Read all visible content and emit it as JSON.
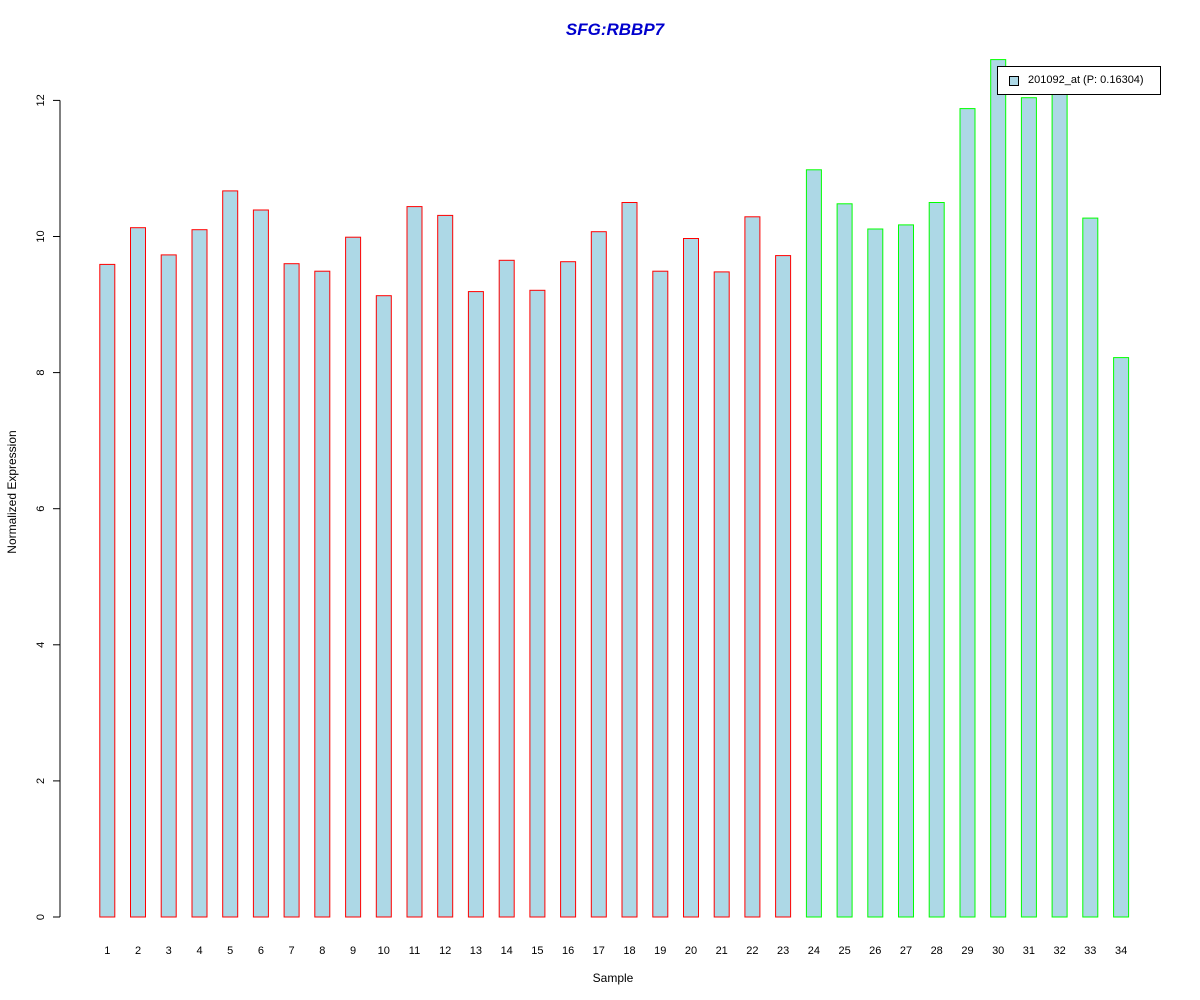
{
  "chart_data": {
    "type": "bar",
    "title": "SFG:RBBP7",
    "xlabel": "Sample",
    "ylabel": "Normalized Expression",
    "ylim": [
      0,
      12.6
    ],
    "yticks": [
      0,
      2,
      4,
      6,
      8,
      10,
      12
    ],
    "grid": false,
    "legend_position": "top-right",
    "categories": [
      "1",
      "2",
      "3",
      "4",
      "5",
      "6",
      "7",
      "8",
      "9",
      "10",
      "11",
      "12",
      "13",
      "14",
      "15",
      "16",
      "17",
      "18",
      "19",
      "20",
      "21",
      "22",
      "23",
      "24",
      "25",
      "26",
      "27",
      "28",
      "29",
      "30",
      "31",
      "32",
      "33",
      "34"
    ],
    "series": [
      {
        "name": "201092_at (P: 0.16304)",
        "values": [
          9.59,
          10.13,
          9.73,
          10.1,
          10.67,
          10.39,
          9.6,
          9.49,
          9.99,
          9.13,
          10.44,
          10.31,
          9.19,
          9.65,
          9.21,
          9.63,
          10.07,
          10.5,
          9.49,
          9.97,
          9.48,
          10.29,
          9.72,
          10.98,
          10.48,
          10.11,
          10.17,
          10.5,
          11.88,
          12.6,
          12.04,
          12.1,
          10.27,
          8.22
        ],
        "groups": [
          "red",
          "red",
          "red",
          "red",
          "red",
          "red",
          "red",
          "red",
          "red",
          "red",
          "red",
          "red",
          "red",
          "red",
          "red",
          "red",
          "red",
          "red",
          "red",
          "red",
          "red",
          "red",
          "red",
          "green",
          "green",
          "green",
          "green",
          "green",
          "green",
          "green",
          "green",
          "green",
          "green",
          "green"
        ]
      }
    ],
    "colors": {
      "bar_fill": "#add8e6",
      "group_red": "#ff0000",
      "group_green": "#00ff00",
      "title": "#0000cd",
      "axis": "#000000"
    }
  }
}
